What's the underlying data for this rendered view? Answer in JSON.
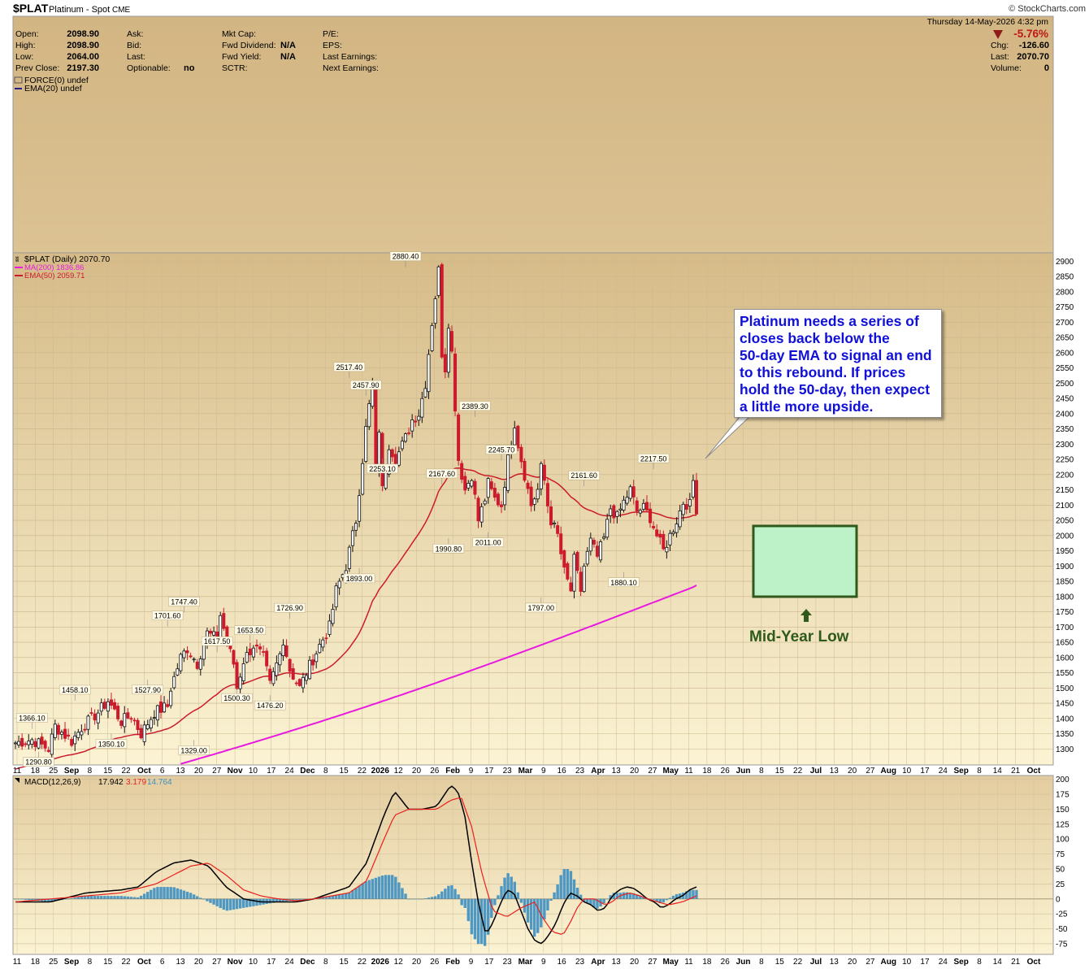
{
  "header": {
    "symbol": "$PLAT",
    "name": "Platinum - Spot",
    "exchange": "CME",
    "watermark": "© StockCharts.com",
    "date": "Thursday  14-May-2026  4:32 pm",
    "quote": [
      {
        "label": "Open:",
        "value": "2098.90"
      },
      {
        "label": "High:",
        "value": "2098.90"
      },
      {
        "label": "Low:",
        "value": "2064.00"
      },
      {
        "label": "Prev Close:",
        "value": "2197.30"
      }
    ],
    "quote2": [
      {
        "label": "Ask:",
        "value": ""
      },
      {
        "label": "Bid:",
        "value": ""
      },
      {
        "label": "Last:",
        "value": ""
      },
      {
        "label": "Optionable:",
        "value": "no"
      }
    ],
    "quote3": [
      {
        "label": "Mkt Cap:",
        "value": ""
      },
      {
        "label": "Fwd Dividend:",
        "value": "N/A"
      },
      {
        "label": "Fwd Yield:",
        "value": "N/A"
      },
      {
        "label": "SCTR:",
        "value": ""
      }
    ],
    "quote4": [
      "P/E:",
      "EPS:",
      "Last Earnings:",
      "Next Earnings:"
    ],
    "pct_change": "-5.76%",
    "right": [
      {
        "label": "Chg:",
        "value": "-126.60"
      },
      {
        "label": "Last:",
        "value": "2070.70"
      },
      {
        "label": "Volume:",
        "value": "0"
      }
    ]
  },
  "force_panel": {
    "legend1": "FORCE(0) undef",
    "legend2": "EMA(20) undef"
  },
  "price_panel": {
    "legend_title": "$PLAT (Daily) 2070.70",
    "legend_ma200": "MA(200) 1836.86",
    "legend_ema50": "EMA(50) 2059.71",
    "callout": "Platinum needs a series of\ncloses back below the\n50-day EMA to signal an end\nto this rebound. If prices\nhold the 50-day, then expect\na little more upside.",
    "box_label": "Mid-Year Low"
  },
  "macd_panel": {
    "legend_name": "MACD(12,26,9)",
    "legend_macd": "17.942",
    "legend_signal": "3.179",
    "legend_hist": "14.764"
  },
  "colors": {
    "bg_top": "#d2b582",
    "bg_bottom": "#f9efcc",
    "up": "#111111",
    "down": "#cc1b2c",
    "ema50": "#cc1b2c",
    "ma200": "#e81ae0",
    "macd": "#000000",
    "signal": "#e8201e",
    "hist": "#3c8fc3",
    "callout_text": "#1010d8",
    "box_fill": "#bdf1c8",
    "box_border": "#2f5a1c"
  },
  "chart_data": {
    "type": "candlestick",
    "title": "$PLAT (Daily) 2070.70",
    "y_axis_price": {
      "min": 1250,
      "max": 2925,
      "ticks": [
        1300,
        1350,
        1400,
        1450,
        1500,
        1550,
        1600,
        1650,
        1700,
        1750,
        1800,
        1850,
        1900,
        1950,
        2000,
        2050,
        2100,
        2150,
        2200,
        2250,
        2300,
        2350,
        2400,
        2450,
        2500,
        2550,
        2600,
        2650,
        2700,
        2750,
        2800,
        2850,
        2900
      ]
    },
    "y_axis_macd": {
      "min": -90,
      "max": 205,
      "ticks": [
        -75,
        -50,
        -25,
        0,
        25,
        50,
        75,
        100,
        125,
        150,
        175,
        200
      ]
    },
    "x_tick_labels": [
      "11",
      "18",
      "25",
      "Sep",
      "8",
      "15",
      "22",
      "Oct",
      "6",
      "13",
      "20",
      "27",
      "Nov",
      "10",
      "17",
      "24",
      "Dec",
      "8",
      "15",
      "22",
      "2026",
      "12",
      "20",
      "26",
      "Feb",
      "9",
      "17",
      "23",
      "Mar",
      "9",
      "16",
      "23",
      "Apr",
      "13",
      "20",
      "27",
      "May",
      "11",
      "18",
      "26",
      "Jun",
      "8",
      "15",
      "22",
      "Jul",
      "13",
      "20",
      "27",
      "Aug",
      "10",
      "17",
      "24",
      "Sep",
      "8",
      "14",
      "21",
      "Oct"
    ],
    "x_bold_labels": [
      "Sep",
      "Oct",
      "Nov",
      "Dec",
      "2026",
      "Feb",
      "Mar",
      "Apr",
      "May",
      "Jun",
      "Jul",
      "Aug",
      "Sep",
      "Oct"
    ],
    "price_path": [
      [
        0,
        1320
      ],
      [
        5,
        1330
      ],
      [
        10,
        1300
      ],
      [
        12,
        1375
      ],
      [
        17,
        1325
      ],
      [
        20,
        1370
      ],
      [
        25,
        1420
      ],
      [
        28,
        1458
      ],
      [
        32,
        1390
      ],
      [
        35,
        1410
      ],
      [
        38,
        1350
      ],
      [
        42,
        1420
      ],
      [
        46,
        1440
      ],
      [
        47,
        1500
      ],
      [
        50,
        1600
      ],
      [
        52,
        1630
      ],
      [
        55,
        1580
      ],
      [
        58,
        1680
      ],
      [
        61,
        1660
      ],
      [
        62,
        1740
      ],
      [
        64,
        1650
      ],
      [
        66,
        1580
      ],
      [
        67,
        1500
      ],
      [
        69,
        1590
      ],
      [
        72,
        1640
      ],
      [
        75,
        1600
      ],
      [
        77,
        1510
      ],
      [
        80,
        1610
      ],
      [
        81,
        1660
      ],
      [
        83,
        1560
      ],
      [
        86,
        1500
      ],
      [
        88,
        1550
      ],
      [
        92,
        1640
      ],
      [
        95,
        1700
      ],
      [
        97,
        1820
      ],
      [
        100,
        1900
      ],
      [
        103,
        2050
      ],
      [
        105,
        2250
      ],
      [
        106,
        2350
      ],
      [
        108,
        2500
      ],
      [
        109,
        2200
      ],
      [
        110,
        2350
      ],
      [
        111,
        2150
      ],
      [
        113,
        2300
      ],
      [
        115,
        2250
      ],
      [
        118,
        2320
      ],
      [
        120,
        2380
      ],
      [
        122,
        2400
      ],
      [
        124,
        2500
      ],
      [
        126,
        2700
      ],
      [
        128,
        2870
      ],
      [
        129,
        2600
      ],
      [
        130,
        2550
      ],
      [
        131,
        2700
      ],
      [
        132,
        2600
      ],
      [
        134,
        2250
      ],
      [
        136,
        2150
      ],
      [
        138,
        2200
      ],
      [
        140,
        2050
      ],
      [
        142,
        2120
      ],
      [
        143,
        2170
      ],
      [
        145,
        2120
      ],
      [
        147,
        2100
      ],
      [
        149,
        2250
      ],
      [
        151,
        2370
      ],
      [
        152,
        2300
      ],
      [
        154,
        2200
      ],
      [
        156,
        2100
      ],
      [
        158,
        2150
      ],
      [
        159,
        2220
      ],
      [
        160,
        2180
      ],
      [
        161,
        2100
      ],
      [
        162,
        2050
      ],
      [
        164,
        2000
      ],
      [
        166,
        1880
      ],
      [
        168,
        1820
      ],
      [
        169,
        1920
      ],
      [
        171,
        1820
      ],
      [
        172,
        1900
      ],
      [
        174,
        1980
      ],
      [
        176,
        1930
      ],
      [
        178,
        1990
      ],
      [
        180,
        2090
      ],
      [
        182,
        2060
      ],
      [
        184,
        2110
      ],
      [
        186,
        2150
      ],
      [
        188,
        2080
      ],
      [
        190,
        2090
      ],
      [
        192,
        2060
      ],
      [
        194,
        2000
      ],
      [
        196,
        1950
      ],
      [
        198,
        2000
      ],
      [
        200,
        2050
      ],
      [
        202,
        2110
      ],
      [
        204,
        2100
      ],
      [
        205,
        2180
      ],
      [
        206,
        2070
      ]
    ],
    "annotations": [
      {
        "label": "1290.80",
        "i": 7,
        "price": 1290.8,
        "pos": "below"
      },
      {
        "label": "1366.10",
        "i": 5,
        "price": 1366.1,
        "pos": "above"
      },
      {
        "label": "1458.10",
        "i": 18,
        "price": 1458.1,
        "pos": "above"
      },
      {
        "label": "1350.10",
        "i": 29,
        "price": 1350.1,
        "pos": "below"
      },
      {
        "label": "1527.90",
        "i": 40,
        "price": 1527.9,
        "pos": "below"
      },
      {
        "label": "1701.60",
        "i": 46,
        "price": 1701.6,
        "pos": "above"
      },
      {
        "label": "1747.40",
        "i": 51,
        "price": 1747.4,
        "pos": "above"
      },
      {
        "label": "1329.00",
        "i": 54,
        "price": 1329.0,
        "pos": "below"
      },
      {
        "label": "1617.50",
        "i": 61,
        "price": 1617.5,
        "pos": "above"
      },
      {
        "label": "1500.30",
        "i": 67,
        "price": 1500.3,
        "pos": "below"
      },
      {
        "label": "1653.50",
        "i": 71,
        "price": 1653.5,
        "pos": "above"
      },
      {
        "label": "1476.20",
        "i": 77,
        "price": 1476.2,
        "pos": "below"
      },
      {
        "label": "1726.90",
        "i": 83,
        "price": 1726.9,
        "pos": "above"
      },
      {
        "label": "2517.40",
        "i": 101,
        "price": 2517.4,
        "pos": "above"
      },
      {
        "label": "1893.00",
        "i": 104,
        "price": 1893.0,
        "pos": "below"
      },
      {
        "label": "2457.90",
        "i": 106,
        "price": 2457.9,
        "pos": "above"
      },
      {
        "label": "2253.10",
        "i": 111,
        "price": 2253.1,
        "pos": "below"
      },
      {
        "label": "2880.40",
        "i": 118,
        "price": 2880.4,
        "pos": "above"
      },
      {
        "label": "2167.60",
        "i": 129,
        "price": 2167.6,
        "pos": "above"
      },
      {
        "label": "1990.80",
        "i": 131,
        "price": 1990.8,
        "pos": "below"
      },
      {
        "label": "2389.30",
        "i": 139,
        "price": 2389.3,
        "pos": "above"
      },
      {
        "label": "2011.00",
        "i": 143,
        "price": 2011.0,
        "pos": "below"
      },
      {
        "label": "2245.70",
        "i": 147,
        "price": 2245.7,
        "pos": "above"
      },
      {
        "label": "1797.00",
        "i": 159,
        "price": 1797.0,
        "pos": "below"
      },
      {
        "label": "2161.60",
        "i": 172,
        "price": 2161.6,
        "pos": "above"
      },
      {
        "label": "1880.10",
        "i": 184,
        "price": 1880.1,
        "pos": "below"
      },
      {
        "label": "2217.50",
        "i": 193,
        "price": 2217.5,
        "pos": "above"
      }
    ],
    "macd_path": [
      [
        0,
        -5
      ],
      [
        10,
        -5
      ],
      [
        20,
        10
      ],
      [
        30,
        15
      ],
      [
        35,
        20
      ],
      [
        40,
        45
      ],
      [
        45,
        60
      ],
      [
        50,
        65
      ],
      [
        55,
        55
      ],
      [
        60,
        20
      ],
      [
        65,
        0
      ],
      [
        70,
        -5
      ],
      [
        75,
        -5
      ],
      [
        80,
        -5
      ],
      [
        85,
        0
      ],
      [
        90,
        10
      ],
      [
        95,
        20
      ],
      [
        100,
        60
      ],
      [
        105,
        140
      ],
      [
        108,
        180
      ],
      [
        112,
        150
      ],
      [
        116,
        150
      ],
      [
        120,
        155
      ],
      [
        124,
        190
      ],
      [
        126,
        180
      ],
      [
        128,
        140
      ],
      [
        130,
        60
      ],
      [
        132,
        -10
      ],
      [
        134,
        -60
      ],
      [
        136,
        -40
      ],
      [
        138,
        -10
      ],
      [
        140,
        15
      ],
      [
        142,
        10
      ],
      [
        144,
        -20
      ],
      [
        146,
        -50
      ],
      [
        148,
        -70
      ],
      [
        150,
        -75
      ],
      [
        152,
        -60
      ],
      [
        154,
        -40
      ],
      [
        156,
        -10
      ],
      [
        158,
        10
      ],
      [
        160,
        5
      ],
      [
        162,
        -5
      ],
      [
        164,
        -10
      ],
      [
        166,
        -20
      ],
      [
        168,
        -15
      ],
      [
        170,
        5
      ],
      [
        172,
        15
      ],
      [
        174,
        20
      ],
      [
        176,
        18
      ],
      [
        178,
        10
      ],
      [
        180,
        0
      ],
      [
        182,
        -5
      ],
      [
        184,
        -15
      ],
      [
        186,
        -10
      ],
      [
        188,
        0
      ],
      [
        190,
        5
      ],
      [
        192,
        15
      ],
      [
        194,
        20
      ]
    ],
    "signal_path": [
      [
        0,
        -5
      ],
      [
        10,
        0
      ],
      [
        20,
        5
      ],
      [
        30,
        10
      ],
      [
        40,
        25
      ],
      [
        45,
        40
      ],
      [
        50,
        55
      ],
      [
        55,
        60
      ],
      [
        60,
        40
      ],
      [
        65,
        15
      ],
      [
        70,
        5
      ],
      [
        75,
        0
      ],
      [
        80,
        -3
      ],
      [
        85,
        0
      ],
      [
        90,
        5
      ],
      [
        95,
        10
      ],
      [
        100,
        30
      ],
      [
        105,
        100
      ],
      [
        108,
        140
      ],
      [
        112,
        150
      ],
      [
        116,
        150
      ],
      [
        120,
        150
      ],
      [
        124,
        165
      ],
      [
        127,
        170
      ],
      [
        130,
        120
      ],
      [
        133,
        40
      ],
      [
        136,
        -20
      ],
      [
        140,
        -30
      ],
      [
        144,
        -15
      ],
      [
        148,
        -5
      ],
      [
        150,
        -30
      ],
      [
        153,
        -55
      ],
      [
        156,
        -60
      ],
      [
        158,
        -40
      ],
      [
        160,
        -15
      ],
      [
        162,
        0
      ],
      [
        165,
        0
      ],
      [
        168,
        -10
      ],
      [
        170,
        -5
      ],
      [
        172,
        5
      ],
      [
        175,
        10
      ],
      [
        178,
        5
      ],
      [
        180,
        0
      ],
      [
        183,
        -5
      ],
      [
        186,
        -10
      ],
      [
        190,
        -5
      ],
      [
        194,
        5
      ]
    ]
  }
}
